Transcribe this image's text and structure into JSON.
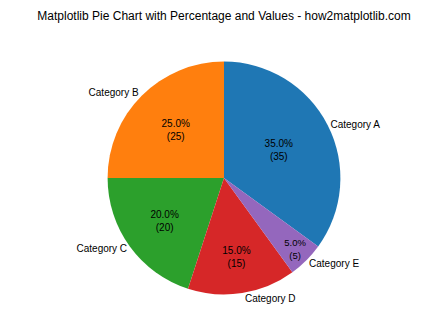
{
  "chart_data": {
    "type": "pie",
    "title": "Matplotlib Pie Chart with Percentage and Values - how2matplotlib.com",
    "categories": [
      "Category A",
      "Category B",
      "Category C",
      "Category D",
      "Category E"
    ],
    "values": [
      35,
      25,
      20,
      15,
      5
    ],
    "value_labels": [
      "35.0%\n(35)",
      "25.0%\n(25)",
      "20.0%\n(20)",
      "15.0%\n(15)",
      "5.0%\n(5)"
    ],
    "colors": [
      "#1f77b4",
      "#ff7f0e",
      "#2ca02c",
      "#d62728",
      "#9467bd"
    ],
    "data_labels": true
  }
}
